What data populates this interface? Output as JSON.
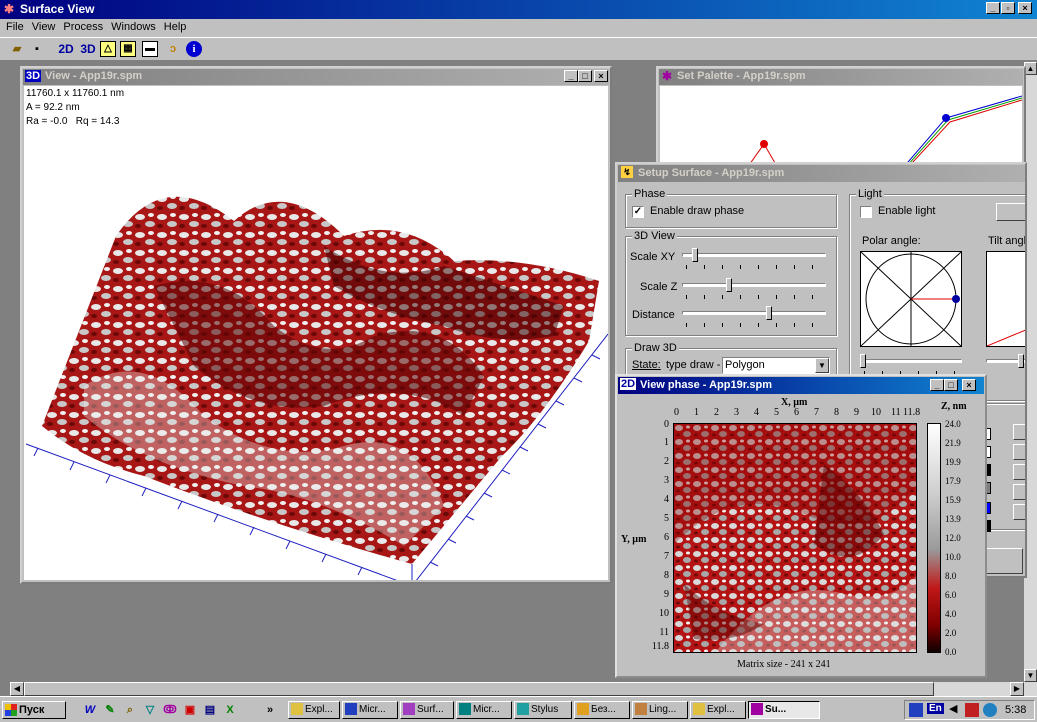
{
  "app": {
    "title": "Surface View",
    "menu": [
      "File",
      "View",
      "Process",
      "Windows",
      "Help"
    ],
    "toolbar": [
      {
        "name": "open-icon",
        "label": ""
      },
      {
        "name": "save-icon",
        "label": ""
      },
      {
        "name": "view-2d-button",
        "label": "2D"
      },
      {
        "name": "view-3d-button",
        "label": "3D"
      },
      {
        "name": "graph-icon",
        "label": ""
      },
      {
        "name": "palette-icon",
        "label": ""
      },
      {
        "name": "surface-icon",
        "label": ""
      },
      {
        "name": "process-icon",
        "label": ""
      },
      {
        "name": "info-icon",
        "label": "i"
      }
    ]
  },
  "view3d": {
    "title_badge": "3D",
    "title": "View - App19r.spm",
    "info": [
      "11760.1 x 11760.1 nm",
      "A = 92.2 nm",
      "Ra = -0.0   Rq = 14.3"
    ]
  },
  "palette": {
    "title": "Set Palette - App19r.spm"
  },
  "setup": {
    "title": "Setup Surface - App19r.spm",
    "phase": {
      "label": "Phase",
      "checkbox": "Enable draw phase",
      "checked": true
    },
    "view3d": {
      "label": "3D View",
      "scale_xy": "Scale XY",
      "scale_z": "Scale Z",
      "distance": "Distance"
    },
    "draw3d": {
      "label": "Draw 3D",
      "state": "State:",
      "type_draw": "type draw -",
      "type_value": "Polygon"
    },
    "light": {
      "label": "Light",
      "checkbox": "Enable light",
      "checked": false,
      "polar": "Polar angle:",
      "tilt": "Tilt angl"
    }
  },
  "phase2d": {
    "title_badge": "2D",
    "title": "View phase - App19r.spm",
    "xlabel": "X, µm",
    "ylabel": "Y, µm",
    "zlabel": "Z, nm",
    "xticks": [
      "0",
      "1",
      "2",
      "3",
      "4",
      "5",
      "6",
      "7",
      "8",
      "9",
      "10",
      "11",
      "11.8"
    ],
    "yticks": [
      "0",
      "1",
      "2",
      "3",
      "4",
      "5",
      "6",
      "7",
      "8",
      "9",
      "10",
      "11",
      "11.8"
    ],
    "zticks": [
      "24.0",
      "21.9",
      "19.9",
      "17.9",
      "15.9",
      "13.9",
      "12.0",
      "10.0",
      "8.0",
      "6.0",
      "4.0",
      "2.0",
      "0.0"
    ],
    "matrix": "Matrix size - 241 x 241"
  },
  "taskbar": {
    "start": "Пуск",
    "chevron": "»",
    "tasks": [
      "Expl...",
      "Micr...",
      "Surf...",
      "Micr...",
      "Stylus",
      "Без...",
      "Ling...",
      "Expl...",
      "Su..."
    ],
    "lang": "En",
    "clock": "5:38"
  },
  "colors": {
    "title_active": "#000080",
    "surface_red": "#b01818",
    "axis_blue": "#2020c0"
  }
}
